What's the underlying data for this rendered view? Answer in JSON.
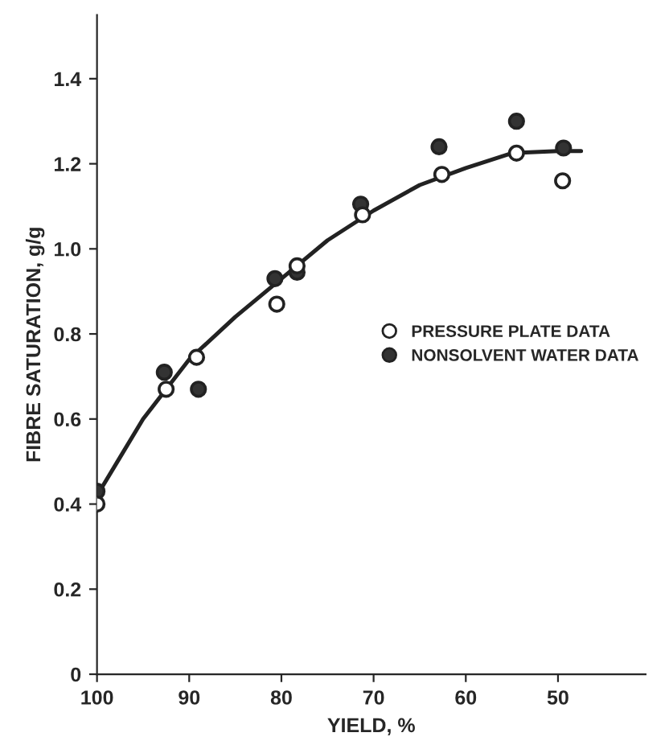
{
  "chart_data": {
    "type": "scatter",
    "xlabel": "YIELD, %",
    "ylabel": "FIBRE SATURATION, g/g",
    "xlim": [
      100,
      40.5
    ],
    "ylim": [
      0,
      1.55
    ],
    "xticks": [
      100,
      90,
      80,
      70,
      60,
      50
    ],
    "yticks": [
      0,
      0.2,
      0.4,
      0.6,
      0.8,
      {
        "value": 1.0,
        "label": "1.0"
      },
      1.2,
      1.4
    ],
    "grid": false,
    "legend": "right",
    "marker": "circle",
    "series": [
      {
        "type": "line",
        "color": "#222222",
        "marker": "none",
        "line_style": "solid",
        "x": [
          100,
          97.5,
          95,
          92.5,
          90,
          85,
          80,
          75,
          70,
          65,
          60,
          55,
          50,
          47.5
        ],
        "values": [
          0.42,
          0.51,
          0.6,
          0.67,
          0.74,
          0.84,
          0.93,
          1.02,
          1.09,
          1.15,
          1.19,
          1.225,
          1.23,
          1.23
        ]
      },
      {
        "name": "PRESSURE PLATE DATA",
        "color": "#ffffff",
        "x": [
          100,
          92.5,
          89.2,
          80.5,
          78.3,
          71.2,
          62.6,
          54.5,
          49.5
        ],
        "values": [
          0.4,
          0.67,
          0.745,
          0.87,
          0.96,
          1.08,
          1.175,
          1.225,
          1.16
        ]
      },
      {
        "name": "NONSOLVENT WATER DATA",
        "color": "#333333",
        "x": [
          100,
          92.7,
          89,
          80.7,
          78.3,
          71.4,
          62.9,
          54.5,
          49.4
        ],
        "values": [
          0.43,
          0.71,
          0.67,
          0.93,
          0.945,
          1.105,
          1.24,
          1.3,
          1.237
        ]
      }
    ]
  }
}
